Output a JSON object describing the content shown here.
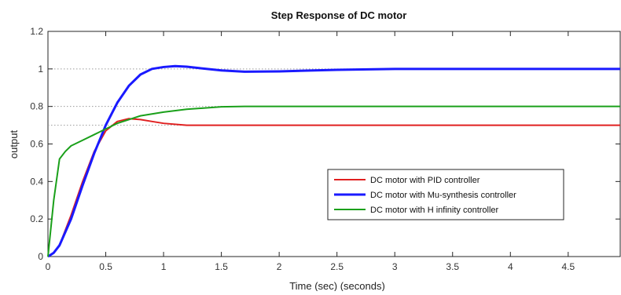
{
  "chart_data": {
    "type": "line",
    "title": "Step Response of DC motor",
    "xlabel": "Time (sec) (seconds)",
    "ylabel": "output",
    "xlim": [
      0,
      4.95
    ],
    "ylim": [
      0,
      1.2
    ],
    "xticks": [
      "0",
      "0.5",
      "1",
      "1.5",
      "2",
      "2.5",
      "3",
      "3.5",
      "4",
      "4.5"
    ],
    "yticks": [
      "0",
      "0.2",
      "0.4",
      "0.6",
      "0.8",
      "1",
      "1.2"
    ],
    "grid": false,
    "legend_position": "lower-right",
    "reference_lines": [
      0.7,
      0.8,
      1.0
    ],
    "series": [
      {
        "name": "DC motor with PID controller",
        "color": "#e02020",
        "x": [
          0,
          0.05,
          0.1,
          0.2,
          0.3,
          0.4,
          0.5,
          0.6,
          0.7,
          0.8,
          0.9,
          1.0,
          1.2,
          1.5,
          2.0,
          3.0,
          4.0,
          4.95
        ],
        "y": [
          0,
          0.02,
          0.06,
          0.22,
          0.4,
          0.56,
          0.67,
          0.72,
          0.735,
          0.73,
          0.72,
          0.71,
          0.7,
          0.7,
          0.7,
          0.7,
          0.7,
          0.7
        ]
      },
      {
        "name": "DC motor with Mu-synthesis controller",
        "color": "#1a1aff",
        "x": [
          0,
          0.05,
          0.1,
          0.2,
          0.3,
          0.4,
          0.5,
          0.6,
          0.7,
          0.8,
          0.9,
          1.0,
          1.1,
          1.2,
          1.3,
          1.5,
          1.7,
          2.0,
          2.5,
          3.0,
          4.0,
          4.95
        ],
        "y": [
          0,
          0.02,
          0.06,
          0.2,
          0.38,
          0.55,
          0.7,
          0.82,
          0.91,
          0.97,
          1.0,
          1.01,
          1.015,
          1.012,
          1.005,
          0.992,
          0.985,
          0.987,
          0.995,
          1.0,
          1.0,
          1.0
        ]
      },
      {
        "name": "DC motor with H infinity controller",
        "color": "#1aa01a",
        "x": [
          0,
          0.05,
          0.1,
          0.15,
          0.2,
          0.3,
          0.4,
          0.5,
          0.6,
          0.7,
          0.8,
          1.0,
          1.2,
          1.5,
          1.7,
          2.0,
          3.0,
          4.0,
          4.95
        ],
        "y": [
          0,
          0.3,
          0.52,
          0.56,
          0.59,
          0.62,
          0.65,
          0.68,
          0.71,
          0.73,
          0.75,
          0.77,
          0.785,
          0.798,
          0.8,
          0.8,
          0.8,
          0.8,
          0.8
        ]
      }
    ]
  }
}
